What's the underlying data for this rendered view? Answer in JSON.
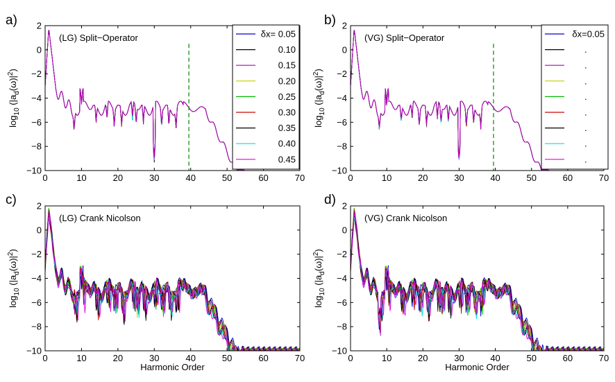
{
  "figure": {
    "xlabel": "Harmonic Order",
    "ylabel_prefix": "log",
    "ylabel_sub10": "10",
    "ylabel_mid": " (|a",
    "ylabel_subd": "d",
    "ylabel_suffix": "(ω)|",
    "ylabel_sup2": "2",
    "ylabel_close": ")"
  },
  "colors": [
    "#0000cc",
    "#000000",
    "#b000b0",
    "#c8c800",
    "#00bb00",
    "#cc0000",
    "#000000",
    "#00dddd",
    "#dd00dd"
  ],
  "chart_data": [
    {
      "type": "line",
      "panel_label": "a)",
      "title": "(LG) Split−Operator",
      "xlim": [
        0,
        70
      ],
      "ylim": [
        -10,
        2
      ],
      "xticks": [
        "0",
        "10",
        "20",
        "30",
        "40",
        "50",
        "60",
        "70"
      ],
      "yticks": [
        "2",
        "0",
        "−2",
        "−4",
        "−6",
        "−8",
        "−10"
      ],
      "cutoff_x": 39.5,
      "legend_prefix": "δx= ",
      "legend": [
        "0.05",
        "0.10",
        "0.15",
        "0.20",
        "0.25",
        "0.30",
        "0.35",
        "0.40",
        "0.45"
      ],
      "series": [
        {
          "name": "δx=0.05",
          "x": [
            0,
            1,
            2,
            3,
            5,
            8,
            10,
            12,
            15,
            20,
            25,
            30,
            31,
            35,
            39,
            42,
            45,
            50,
            52,
            55,
            60,
            70
          ],
          "y": [
            -3,
            1.8,
            -1,
            -3.5,
            -4,
            -5.5,
            -3.2,
            -4.5,
            -4.5,
            -4.6,
            -4.8,
            -7.5,
            -4.5,
            -5,
            -4.6,
            -4.7,
            -5.5,
            -8,
            -9.5,
            -9.9,
            -10,
            -10
          ]
        },
        {
          "name": "δx=0.45",
          "x": [
            0,
            1,
            2,
            3,
            5,
            8,
            10,
            12,
            15,
            20,
            25,
            30,
            31,
            35,
            39,
            42,
            45,
            50,
            52,
            55,
            60,
            70
          ],
          "y": [
            -3,
            1.8,
            -1,
            -3.5,
            -4,
            -5.5,
            -3.2,
            -4.5,
            -4.5,
            -4.6,
            -4.8,
            -7.5,
            -4.5,
            -5,
            -4.6,
            -4.7,
            -5.5,
            -8,
            -9.5,
            -9.9,
            -10,
            -10
          ]
        }
      ]
    },
    {
      "type": "line",
      "panel_label": "b)",
      "title": "(VG) Split−Operator",
      "xlim": [
        0,
        70
      ],
      "ylim": [
        -10,
        2
      ],
      "xticks": [
        "0",
        "10",
        "20",
        "30",
        "40",
        "50",
        "60",
        "70"
      ],
      "yticks": [
        "2",
        "0",
        "−2",
        "−4",
        "−6",
        "−8",
        "−10"
      ],
      "cutoff_x": 39.5,
      "legend_prefix": "δx=",
      "legend": [
        "0.05",
        ".",
        ".",
        ".",
        ".",
        ".",
        ".",
        ".",
        "."
      ],
      "series": [
        {
          "name": "δx=0.05",
          "x": [
            0,
            1,
            2,
            3,
            5,
            8,
            10,
            12,
            15,
            20,
            25,
            30,
            31,
            35,
            39,
            42,
            45,
            50,
            52,
            55,
            60,
            70
          ],
          "y": [
            -3,
            1.8,
            -1,
            -3.5,
            -4,
            -5.5,
            -3.2,
            -4.5,
            -4.5,
            -4.6,
            -4.8,
            -7.5,
            -4.5,
            -5,
            -4.6,
            -4.7,
            -5.5,
            -8,
            -9.5,
            -9.9,
            -10,
            -10
          ]
        }
      ]
    },
    {
      "type": "line",
      "panel_label": "c)",
      "title": "(LG) Crank Nicolson",
      "xlim": [
        0,
        70
      ],
      "ylim": [
        -10,
        2
      ],
      "xticks": [
        "0",
        "10",
        "20",
        "30",
        "40",
        "50",
        "60",
        "70"
      ],
      "yticks": [
        "2",
        "0",
        "−2",
        "−4",
        "−6",
        "−8",
        "−10"
      ],
      "series": [
        {
          "name": "δx=0.05",
          "x": [
            0,
            1,
            2,
            4,
            6,
            8,
            10,
            15,
            20,
            25,
            30,
            35,
            38,
            41,
            45,
            48,
            50,
            52,
            55,
            60,
            70
          ],
          "y": [
            -3,
            1.8,
            -1,
            -3,
            -4,
            -5.5,
            -3.5,
            -4.5,
            -4.8,
            -4.9,
            -4.8,
            -5.5,
            -4.6,
            -4.7,
            -5.5,
            -7.5,
            -9,
            -9.8,
            -10,
            -10,
            -10
          ]
        },
        {
          "name": "δx=0.45",
          "x": [
            0,
            1,
            2,
            4,
            6,
            8,
            10,
            15,
            20,
            25,
            30,
            35,
            38,
            41,
            45,
            48,
            50,
            52,
            55,
            60,
            70
          ],
          "y": [
            -3,
            1.8,
            -1,
            -3,
            -4,
            -5.8,
            -3.7,
            -4.8,
            -5.1,
            -5.2,
            -5.1,
            -5.8,
            -4.8,
            -5,
            -6,
            -8.2,
            -9.5,
            -9.9,
            -10,
            -10,
            -10
          ]
        }
      ]
    },
    {
      "type": "line",
      "panel_label": "d)",
      "title": "(VG) Crank Nicolson",
      "xlim": [
        0,
        70
      ],
      "ylim": [
        -10,
        2
      ],
      "xticks": [
        "0",
        "10",
        "20",
        "30",
        "40",
        "50",
        "60",
        "70"
      ],
      "yticks": [
        "2",
        "0",
        "−2",
        "−4",
        "−6",
        "−8",
        "−10"
      ],
      "series": [
        {
          "name": "δx=0.05",
          "x": [
            0,
            1,
            2,
            4,
            6,
            8,
            10,
            15,
            20,
            25,
            30,
            35,
            38,
            41,
            45,
            48,
            50,
            52,
            55,
            60,
            70
          ],
          "y": [
            -3,
            1.8,
            -1.5,
            -3,
            -4.5,
            -6.5,
            -4.3,
            -5,
            -5,
            -5,
            -4.9,
            -5.3,
            -4.7,
            -4.8,
            -6,
            -8,
            -9.3,
            -9.9,
            -10,
            -10,
            -10
          ]
        },
        {
          "name": "δx=0.45",
          "x": [
            0,
            1,
            2,
            4,
            6,
            8,
            10,
            15,
            20,
            25,
            30,
            35,
            38,
            41,
            45,
            48,
            50,
            52,
            55,
            60,
            70
          ],
          "y": [
            -3,
            1.8,
            -1.5,
            -3.2,
            -4.8,
            -7.5,
            -4.6,
            -5.3,
            -5.3,
            -5.2,
            -5.1,
            -5.6,
            -4.8,
            -4.9,
            -6.5,
            -8.6,
            -9.7,
            -10,
            -10,
            -10,
            -10
          ]
        }
      ]
    }
  ]
}
